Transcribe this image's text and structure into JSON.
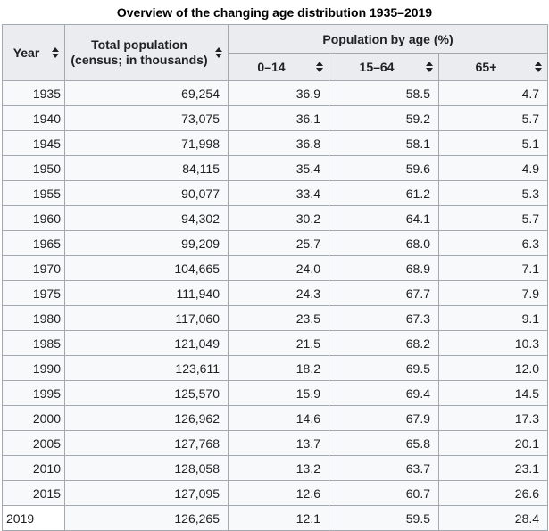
{
  "title": "Overview of the changing age distribution 1935–2019",
  "colors": {
    "header_bg": "#eaecf0",
    "row_bg": "#f8f9fa",
    "plain_cell_bg": "#ffffff",
    "border": "#a2a9b1",
    "text": "#202122"
  },
  "table": {
    "headers": {
      "year": "Year",
      "total_line1": "Total population",
      "total_line2": "(census; in thousands)",
      "group": "Population by age (%)",
      "age_0_14": "0–14",
      "age_15_64": "15–64",
      "age_65_plus": "65+"
    },
    "rows": [
      {
        "year": "1935",
        "total": "69,254",
        "a0_14": "36.9",
        "a15_64": "58.5",
        "a65": "4.7"
      },
      {
        "year": "1940",
        "total": "73,075",
        "a0_14": "36.1",
        "a15_64": "59.2",
        "a65": "5.7"
      },
      {
        "year": "1945",
        "total": "71,998",
        "a0_14": "36.8",
        "a15_64": "58.1",
        "a65": "5.1"
      },
      {
        "year": "1950",
        "total": "84,115",
        "a0_14": "35.4",
        "a15_64": "59.6",
        "a65": "4.9"
      },
      {
        "year": "1955",
        "total": "90,077",
        "a0_14": "33.4",
        "a15_64": "61.2",
        "a65": "5.3"
      },
      {
        "year": "1960",
        "total": "94,302",
        "a0_14": "30.2",
        "a15_64": "64.1",
        "a65": "5.7"
      },
      {
        "year": "1965",
        "total": "99,209",
        "a0_14": "25.7",
        "a15_64": "68.0",
        "a65": "6.3"
      },
      {
        "year": "1970",
        "total": "104,665",
        "a0_14": "24.0",
        "a15_64": "68.9",
        "a65": "7.1"
      },
      {
        "year": "1975",
        "total": "111,940",
        "a0_14": "24.3",
        "a15_64": "67.7",
        "a65": "7.9"
      },
      {
        "year": "1980",
        "total": "117,060",
        "a0_14": "23.5",
        "a15_64": "67.3",
        "a65": "9.1"
      },
      {
        "year": "1985",
        "total": "121,049",
        "a0_14": "21.5",
        "a15_64": "68.2",
        "a65": "10.3"
      },
      {
        "year": "1990",
        "total": "123,611",
        "a0_14": "18.2",
        "a15_64": "69.5",
        "a65": "12.0"
      },
      {
        "year": "1995",
        "total": "125,570",
        "a0_14": "15.9",
        "a15_64": "69.4",
        "a65": "14.5"
      },
      {
        "year": "2000",
        "total": "126,962",
        "a0_14": "14.6",
        "a15_64": "67.9",
        "a65": "17.3"
      },
      {
        "year": "2005",
        "total": "127,768",
        "a0_14": "13.7",
        "a15_64": "65.8",
        "a65": "20.1"
      },
      {
        "year": "2010",
        "total": "128,058",
        "a0_14": "13.2",
        "a15_64": "63.7",
        "a65": "23.1"
      },
      {
        "year": "2015",
        "total": "127,095",
        "a0_14": "12.6",
        "a15_64": "60.7",
        "a65": "26.6"
      },
      {
        "year": "2019",
        "total": "126,265",
        "a0_14": "12.1",
        "a15_64": "59.5",
        "a65": "28.4",
        "year_plain": true
      }
    ]
  },
  "chart_data": {
    "type": "table",
    "title": "Overview of the changing age distribution 1935–2019",
    "columns": [
      "Year",
      "Total population (census; in thousands)",
      "0–14 (%)",
      "15–64 (%)",
      "65+ (%)"
    ],
    "rows": [
      [
        1935,
        69254,
        36.9,
        58.5,
        4.7
      ],
      [
        1940,
        73075,
        36.1,
        59.2,
        5.7
      ],
      [
        1945,
        71998,
        36.8,
        58.1,
        5.1
      ],
      [
        1950,
        84115,
        35.4,
        59.6,
        4.9
      ],
      [
        1955,
        90077,
        33.4,
        61.2,
        5.3
      ],
      [
        1960,
        94302,
        30.2,
        64.1,
        5.7
      ],
      [
        1965,
        99209,
        25.7,
        68.0,
        6.3
      ],
      [
        1970,
        104665,
        24.0,
        68.9,
        7.1
      ],
      [
        1975,
        111940,
        24.3,
        67.7,
        7.9
      ],
      [
        1980,
        117060,
        23.5,
        67.3,
        9.1
      ],
      [
        1985,
        121049,
        21.5,
        68.2,
        10.3
      ],
      [
        1990,
        123611,
        18.2,
        69.5,
        12.0
      ],
      [
        1995,
        125570,
        15.9,
        69.4,
        14.5
      ],
      [
        2000,
        126962,
        14.6,
        67.9,
        17.3
      ],
      [
        2005,
        127768,
        13.7,
        65.8,
        20.1
      ],
      [
        2010,
        128058,
        13.2,
        63.7,
        23.1
      ],
      [
        2015,
        127095,
        12.6,
        60.7,
        26.6
      ],
      [
        2019,
        126265,
        12.1,
        59.5,
        28.4
      ]
    ]
  }
}
